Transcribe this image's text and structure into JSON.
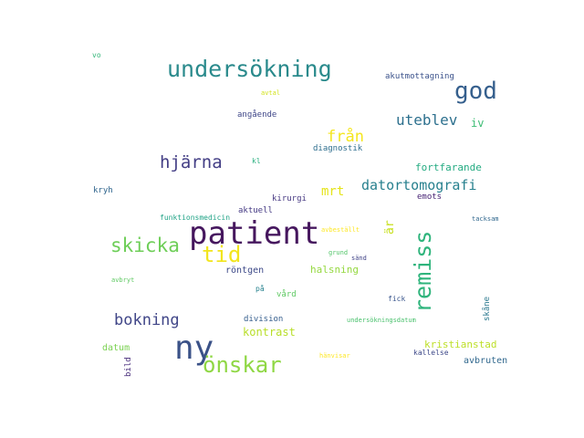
{
  "words": [
    {
      "text": "patient",
      "color": "#46175e",
      "weight": 1.0
    },
    {
      "text": "ny",
      "color": "#3b5288",
      "weight": 0.92
    },
    {
      "text": "remiss",
      "color": "#2fb47c",
      "weight": 0.78,
      "vertical": true
    },
    {
      "text": "undersökning",
      "color": "#2a8a8c",
      "weight": 0.75
    },
    {
      "text": "god",
      "color": "#355f8d",
      "weight": 0.72
    },
    {
      "text": "önskar",
      "color": "#8fd744",
      "weight": 0.68
    },
    {
      "text": "tid",
      "color": "#f2e51d",
      "weight": 0.66
    },
    {
      "text": "skicka",
      "color": "#6ece58",
      "weight": 0.58
    },
    {
      "text": "hjärna",
      "color": "#433e85",
      "weight": 0.55
    },
    {
      "text": "bokning",
      "color": "#404688",
      "weight": 0.48
    },
    {
      "text": "från",
      "color": "#f4e61e",
      "weight": 0.46
    },
    {
      "text": "uteblev",
      "color": "#2d708e",
      "weight": 0.42
    },
    {
      "text": "datortomografi",
      "color": "#27808e",
      "weight": 0.42
    },
    {
      "text": "mrt",
      "color": "#e5e419",
      "weight": 0.38
    },
    {
      "text": "är",
      "color": "#c8e020",
      "weight": 0.34,
      "vertical": true
    },
    {
      "text": "iv",
      "color": "#3dbc74",
      "weight": 0.3
    },
    {
      "text": "kontrast",
      "color": "#b8de29",
      "weight": 0.3
    },
    {
      "text": "kristianstad",
      "color": "#bddf26",
      "weight": 0.26
    },
    {
      "text": "fortfarande",
      "color": "#25ab82",
      "weight": 0.26
    },
    {
      "text": "halsning",
      "color": "#95d840",
      "weight": 0.26
    },
    {
      "text": "röntgen",
      "color": "#3e4a89",
      "weight": 0.24
    },
    {
      "text": "datum",
      "color": "#7ad151",
      "weight": 0.24
    },
    {
      "text": "avbruten",
      "color": "#31688e",
      "weight": 0.24
    },
    {
      "text": "akutmottagning",
      "color": "#3b528b",
      "weight": 0.22
    },
    {
      "text": "angående",
      "color": "#3f4788",
      "weight": 0.22
    },
    {
      "text": "diagnostik",
      "color": "#2e6e8e",
      "weight": 0.2
    },
    {
      "text": "aktuell",
      "color": "#443983",
      "weight": 0.2
    },
    {
      "text": "kirurgi",
      "color": "#453781",
      "weight": 0.2
    },
    {
      "text": "emots",
      "color": "#482475",
      "weight": 0.2
    },
    {
      "text": "division",
      "color": "#355e8d",
      "weight": 0.2
    },
    {
      "text": "vård",
      "color": "#5ec962",
      "weight": 0.2
    },
    {
      "text": "skåne",
      "color": "#2a788e",
      "weight": 0.2,
      "vertical": true
    },
    {
      "text": "bild",
      "color": "#472c7a",
      "weight": 0.18,
      "vertical": true
    },
    {
      "text": "kryh",
      "color": "#31668e",
      "weight": 0.18
    },
    {
      "text": "funktionsmedicin",
      "color": "#20a386",
      "weight": 0.17
    },
    {
      "text": "kl",
      "color": "#29af7f",
      "weight": 0.17
    },
    {
      "text": "på",
      "color": "#26828e",
      "weight": 0.17
    },
    {
      "text": "fick",
      "color": "#39558c",
      "weight": 0.16
    },
    {
      "text": "kallelse",
      "color": "#3e4989",
      "weight": 0.16
    },
    {
      "text": "sänd",
      "color": "#404387",
      "weight": 0.16
    },
    {
      "text": "vo",
      "color": "#35b779",
      "weight": 0.17
    },
    {
      "text": "undersökningsdatum",
      "color": "#4ac16d",
      "weight": 0.15
    },
    {
      "text": "tacksam",
      "color": "#31688e",
      "weight": 0.15
    },
    {
      "text": "grund",
      "color": "#52c569",
      "weight": 0.15
    },
    {
      "text": "hänvisar",
      "color": "#fde725",
      "weight": 0.15
    },
    {
      "text": "avtal",
      "color": "#d2e21b",
      "weight": 0.14
    },
    {
      "text": "avbeställt",
      "color": "#fde725",
      "weight": 0.14
    },
    {
      "text": "avbryt",
      "color": "#5ec962",
      "weight": 0.14
    }
  ]
}
